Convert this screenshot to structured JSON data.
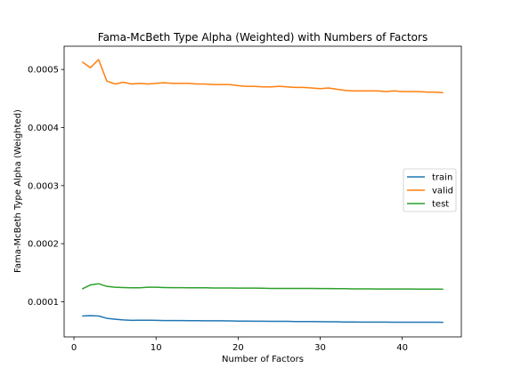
{
  "chart_data": {
    "type": "line",
    "title": "Fama-McBeth Type Alpha (Weighted) with Numbers of Factors",
    "xlabel": "Number of Factors",
    "ylabel": "Fama-McBeth Type Alpha (Weighted)",
    "xlim": [
      -1.2,
      47.2
    ],
    "ylim": [
      3.95e-05,
      0.00054
    ],
    "xticks": [
      0,
      10,
      20,
      30,
      40
    ],
    "xtick_labels": [
      "0",
      "10",
      "20",
      "30",
      "40"
    ],
    "yticks": [
      0.0001,
      0.0002,
      0.0003,
      0.0004,
      0.0005
    ],
    "ytick_labels": [
      "0.0001",
      "0.0002",
      "0.0003",
      "0.0004",
      "0.0005"
    ],
    "grid": false,
    "legend_position": "center-right",
    "x": [
      1,
      2,
      3,
      4,
      5,
      6,
      7,
      8,
      9,
      10,
      11,
      12,
      13,
      14,
      15,
      16,
      17,
      18,
      19,
      20,
      21,
      22,
      23,
      24,
      25,
      26,
      27,
      28,
      29,
      30,
      31,
      32,
      33,
      34,
      35,
      36,
      37,
      38,
      39,
      40,
      41,
      42,
      43,
      44,
      45
    ],
    "series": [
      {
        "name": "train",
        "color": "#1f77b4",
        "values": [
          7.55e-05,
          7.6e-05,
          7.55e-05,
          7.15e-05,
          7e-05,
          6.87e-05,
          6.8e-05,
          6.82e-05,
          6.82e-05,
          6.8e-05,
          6.77e-05,
          6.77e-05,
          6.77e-05,
          6.75e-05,
          6.75e-05,
          6.72e-05,
          6.72e-05,
          6.72e-05,
          6.7e-05,
          6.67e-05,
          6.67e-05,
          6.65e-05,
          6.65e-05,
          6.62e-05,
          6.62e-05,
          6.62e-05,
          6.6e-05,
          6.6e-05,
          6.6e-05,
          6.57e-05,
          6.55e-05,
          6.55e-05,
          6.52e-05,
          6.52e-05,
          6.5e-05,
          6.5e-05,
          6.5e-05,
          6.5e-05,
          6.48e-05,
          6.48e-05,
          6.48e-05,
          6.48e-05,
          6.48e-05,
          6.48e-05,
          6.45e-05
        ]
      },
      {
        "name": "valid",
        "color": "#ff7f0e",
        "values": [
          0.000513,
          0.000503,
          0.000517,
          0.00048,
          0.000475,
          0.000478,
          0.000475,
          0.000476,
          0.000475,
          0.000476,
          0.000477,
          0.000476,
          0.000476,
          0.000476,
          0.000475,
          0.000475,
          0.000474,
          0.000474,
          0.000474,
          0.000472,
          0.000471,
          0.000471,
          0.00047,
          0.00047,
          0.000471,
          0.00047,
          0.000469,
          0.000469,
          0.000468,
          0.000467,
          0.000468,
          0.000466,
          0.000464,
          0.000463,
          0.000463,
          0.000463,
          0.000463,
          0.000462,
          0.000463,
          0.000462,
          0.000462,
          0.000462,
          0.000461,
          0.000461,
          0.00046
        ]
      },
      {
        "name": "test",
        "color": "#2ca02c",
        "values": [
          0.000122,
          0.000129,
          0.000131,
          0.0001265,
          0.000125,
          0.0001245,
          0.000124,
          0.000124,
          0.000125,
          0.000125,
          0.0001245,
          0.0001243,
          0.0001243,
          0.000124,
          0.000124,
          0.000124,
          0.0001237,
          0.0001237,
          0.0001237,
          0.0001235,
          0.0001235,
          0.0001235,
          0.0001232,
          0.000123,
          0.000123,
          0.000123,
          0.000123,
          0.000123,
          0.000123,
          0.0001227,
          0.0001227,
          0.0001225,
          0.0001225,
          0.0001222,
          0.0001222,
          0.0001222,
          0.000122,
          0.000122,
          0.000122,
          0.000122,
          0.000122,
          0.0001217,
          0.0001217,
          0.0001217,
          0.0001215
        ]
      }
    ]
  }
}
